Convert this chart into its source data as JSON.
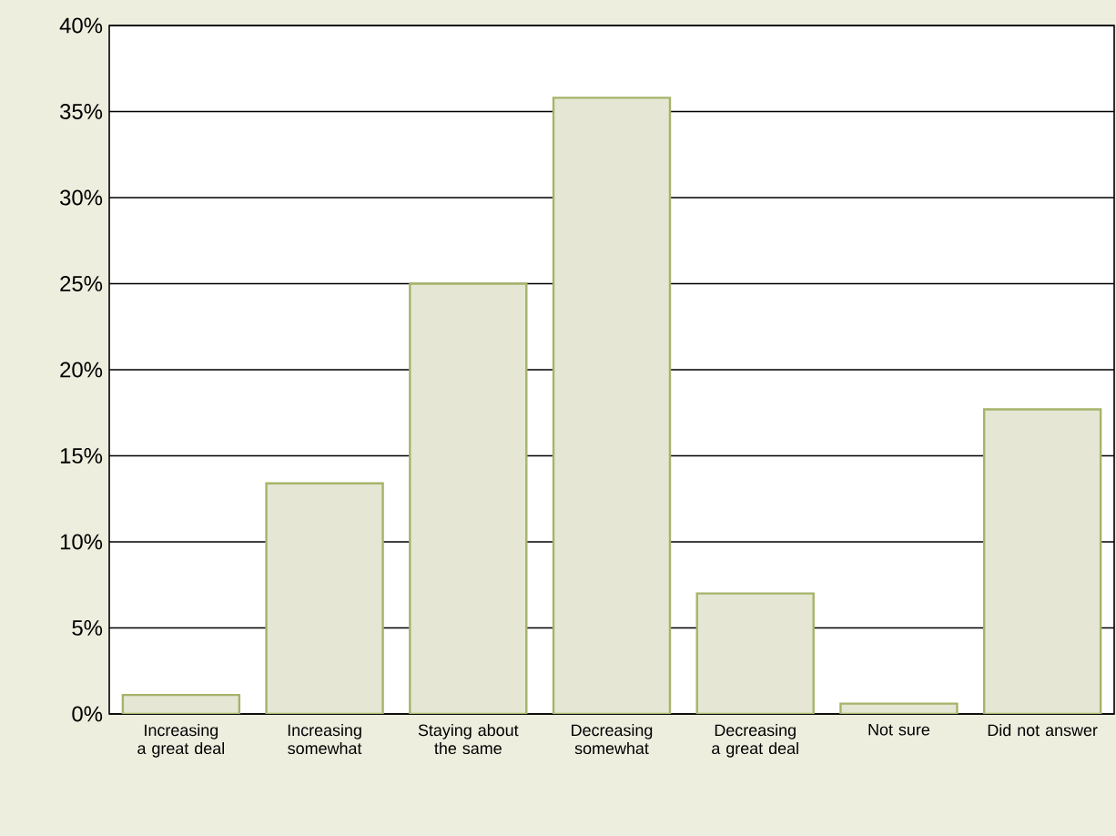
{
  "chart_data": {
    "type": "bar",
    "categories": [
      "Increasing a great deal",
      "Increasing somewhat",
      "Staying about the same",
      "Decreasing somewhat",
      "Decreasing a great deal",
      "Not sure",
      "Did not answer"
    ],
    "values": [
      1.1,
      13.4,
      25,
      35.8,
      7,
      0.6,
      17.7
    ],
    "color": "#e5e6d3",
    "ylim": [
      0,
      40
    ],
    "yticks": [
      {
        "value": 0,
        "label": "0%"
      },
      {
        "value": 5,
        "label": "5%"
      },
      {
        "value": 10,
        "label": "10%"
      },
      {
        "value": 15,
        "label": "15%"
      },
      {
        "value": 20,
        "label": "20%"
      },
      {
        "value": 25,
        "label": "25%"
      },
      {
        "value": 30,
        "label": "30%"
      },
      {
        "value": 35,
        "label": "35%"
      },
      {
        "value": 40,
        "label": "40%"
      }
    ],
    "grid": "y"
  }
}
